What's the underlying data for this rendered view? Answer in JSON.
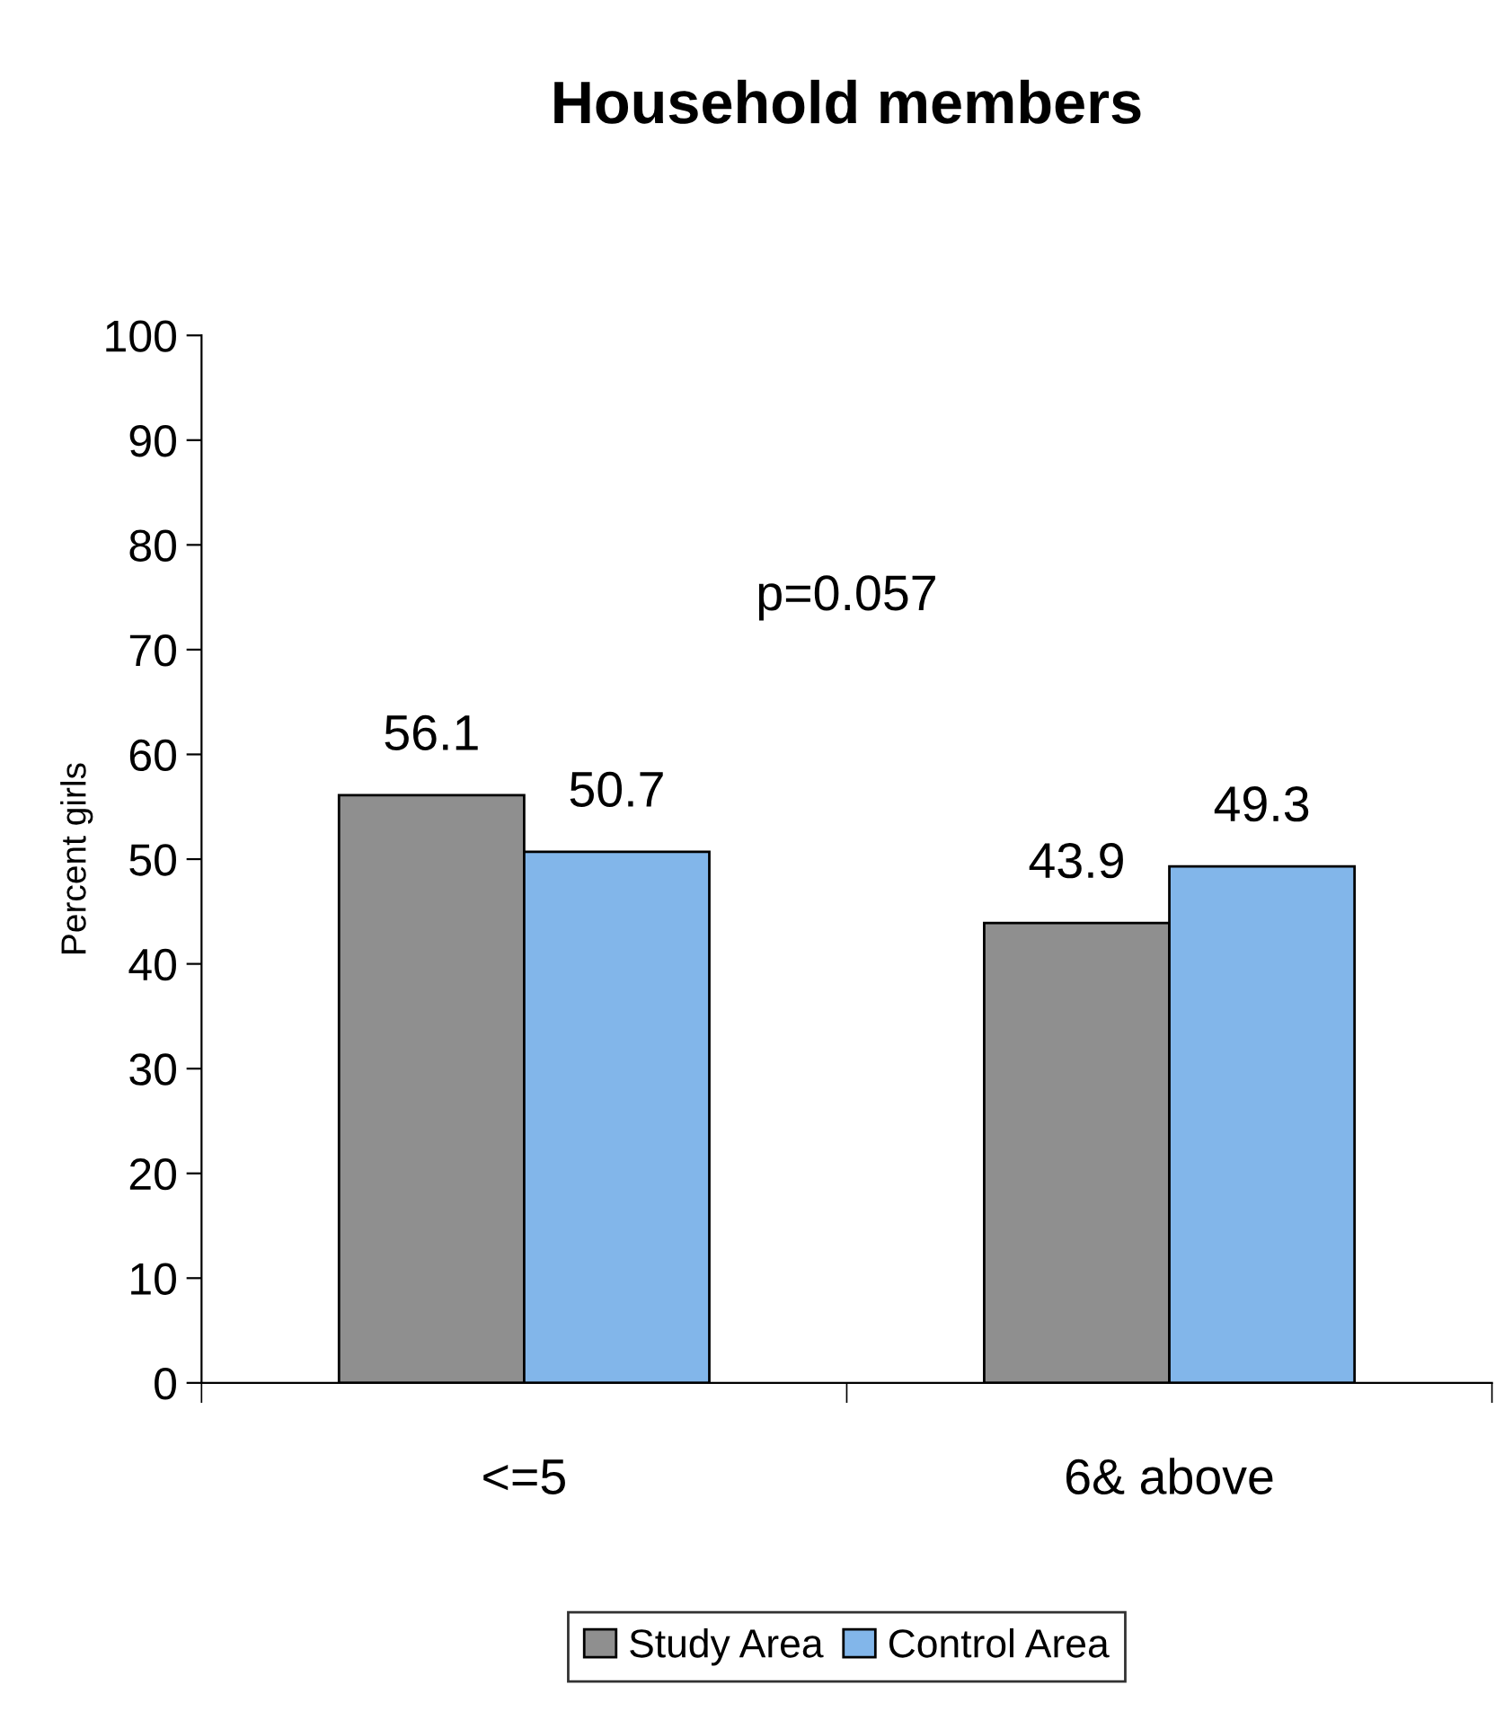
{
  "chart_data": {
    "type": "bar",
    "title": "Household members",
    "ylabel": "Percent girls",
    "categories": [
      "<=5",
      "6& above"
    ],
    "series": [
      {
        "name": "Study Area",
        "color": "#8f8f8f",
        "values": [
          56.1,
          43.9
        ]
      },
      {
        "name": "Control Area",
        "color": "#82b6ea",
        "values": [
          50.7,
          49.3
        ]
      }
    ],
    "ylim": [
      0,
      100
    ],
    "yticks": [
      0,
      10,
      20,
      30,
      40,
      50,
      60,
      70,
      80,
      90,
      100
    ],
    "annotations": [
      "p=0.057"
    ],
    "data_labels": true,
    "grid": false,
    "legend": "bottom"
  }
}
